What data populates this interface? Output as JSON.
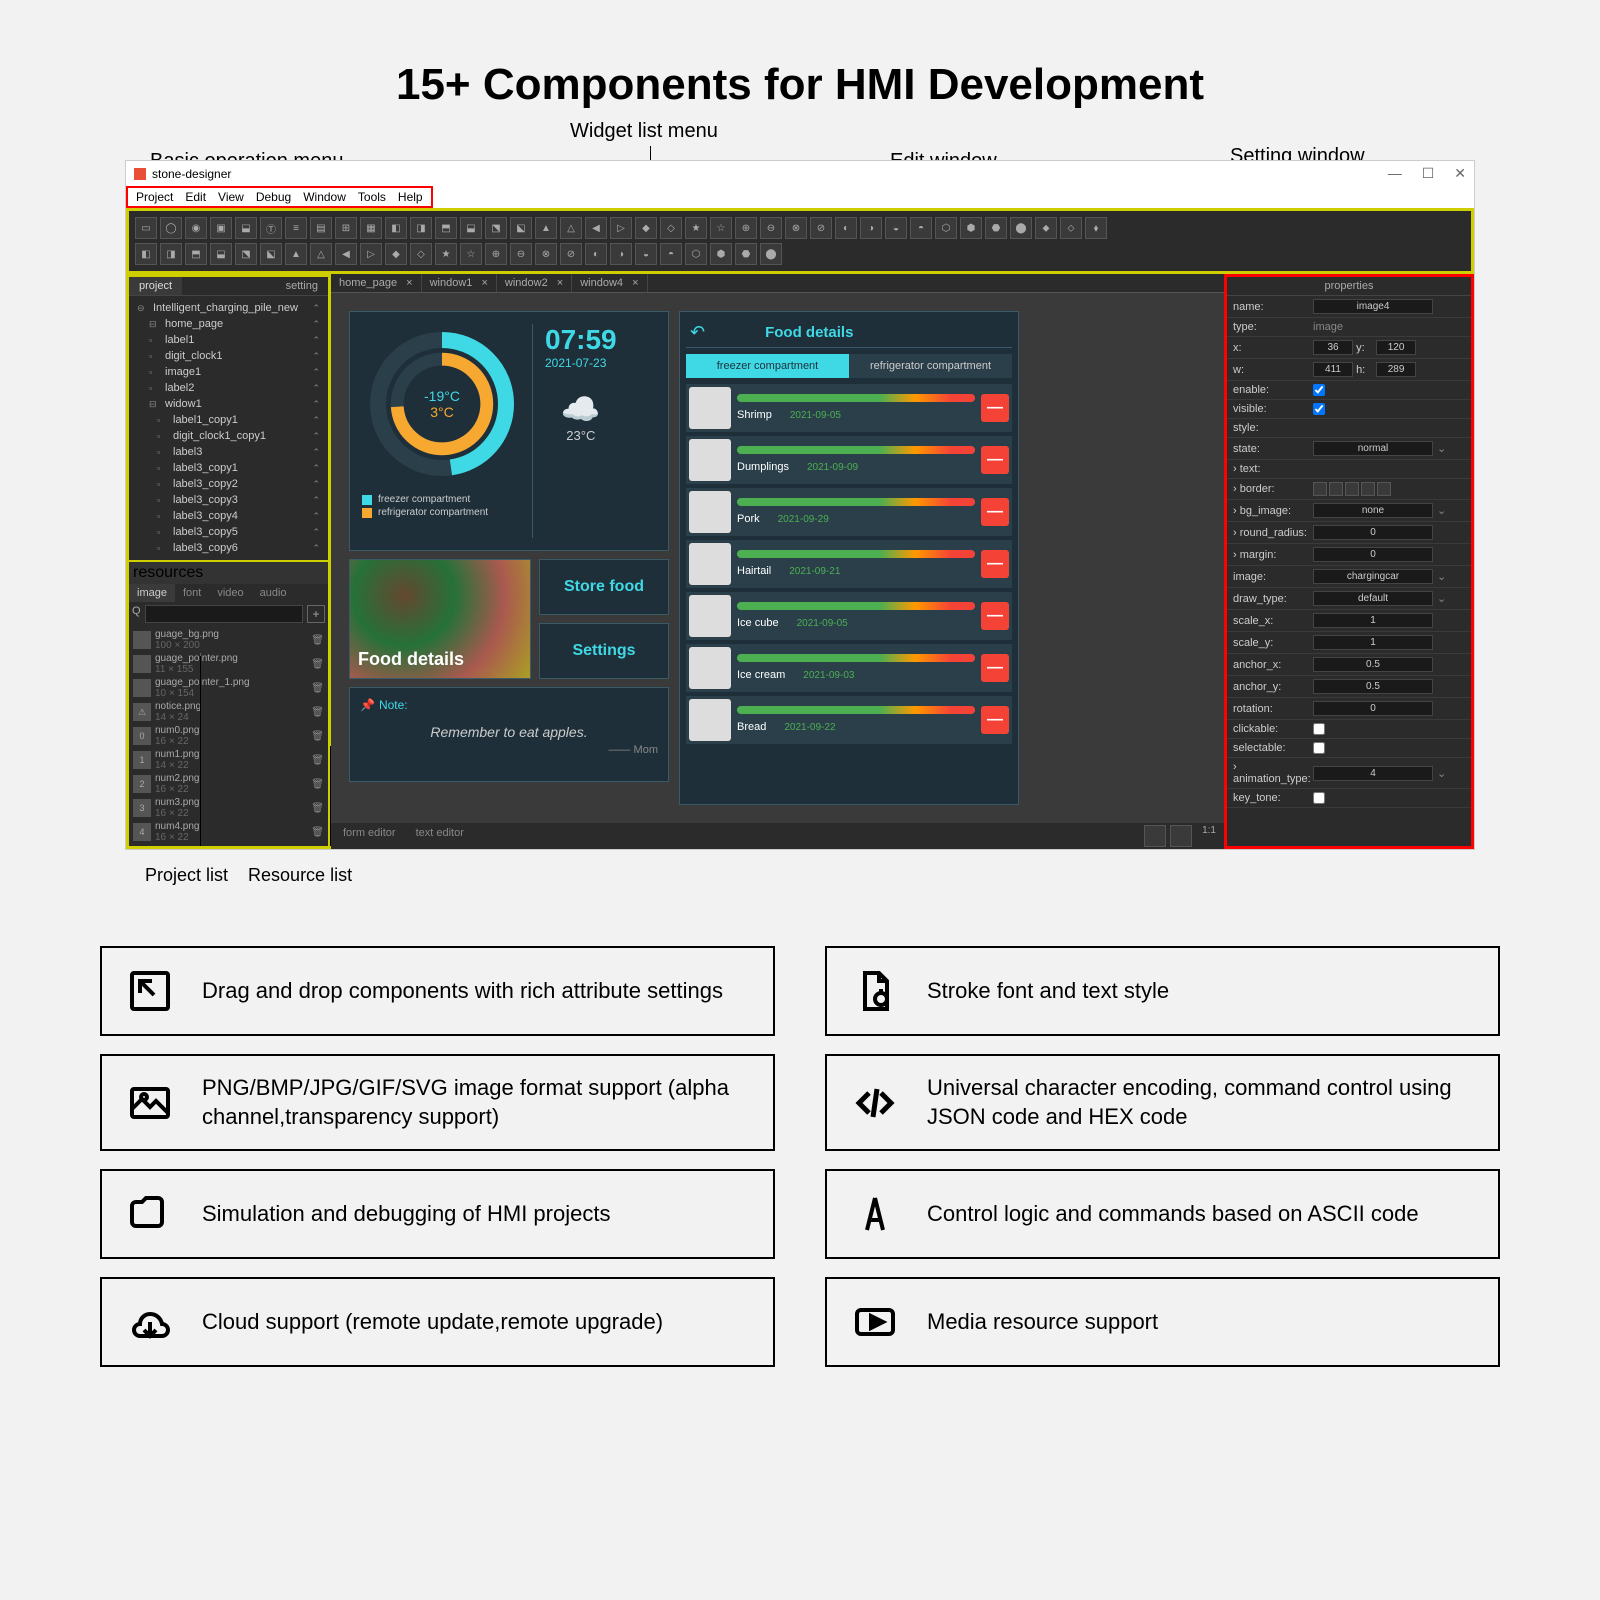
{
  "title": "15+ Components for HMI Development",
  "callouts": {
    "basic_menu": "Basic operation menu",
    "widget_menu": "Widget list menu",
    "edit_window": "Edit window",
    "setting_window": "Setting window",
    "project_list": "Project list",
    "resource_list": "Resource list"
  },
  "app": {
    "title": "stone-designer",
    "menu": [
      "Project",
      "Edit",
      "View",
      "Debug",
      "Window",
      "Tools",
      "Help"
    ]
  },
  "project_panel": {
    "tabs": [
      "project",
      "setting"
    ],
    "root": "Intelligent_charging_pile_new",
    "items": [
      "home_page",
      "label1",
      "digit_clock1",
      "image1",
      "label2",
      "widow1",
      "label1_copy1",
      "digit_clock1_copy1",
      "label3",
      "label3_copy1",
      "label3_copy2",
      "label3_copy3",
      "label3_copy4",
      "label3_copy5",
      "label3_copy6"
    ],
    "res_header": "resources"
  },
  "resource_panel": {
    "tabs": [
      "image",
      "font",
      "video",
      "audio"
    ],
    "items": [
      {
        "name": "guage_bg.png",
        "dim": "100 × 200"
      },
      {
        "name": "guage_pointer.png",
        "dim": "11 × 155"
      },
      {
        "name": "guage_pointer_1.png",
        "dim": "10 × 154"
      },
      {
        "name": "notice.png",
        "dim": "14 × 24"
      },
      {
        "name": "num0.png",
        "dim": "16 × 22"
      },
      {
        "name": "num1.png",
        "dim": "14 × 22"
      },
      {
        "name": "num2.png",
        "dim": "16 × 22"
      },
      {
        "name": "num3.png",
        "dim": "16 × 22"
      },
      {
        "name": "num4.png",
        "dim": "16 × 22"
      }
    ]
  },
  "doc_tabs": [
    "home_page",
    "window1",
    "window2",
    "window4"
  ],
  "dashboard": {
    "temp1": "-19°C",
    "temp2": "3°C",
    "time": "07:59",
    "date": "2021-07-23",
    "weather_temp": "23°C",
    "legend1": "freezer compartment",
    "legend2": "refrigerator compartment",
    "color1": "#3fd9e6",
    "color2": "#f7a830",
    "food_details_btn": "Food details",
    "store_food_btn": "Store food",
    "settings_btn": "Settings",
    "note_label": "Note:",
    "note_text": "Remember to eat apples.",
    "note_sig": "—— Mom"
  },
  "food_panel": {
    "title": "Food details",
    "tabs": [
      "freezer compartment",
      "refrigerator compartment"
    ],
    "items": [
      {
        "name": "Shrimp",
        "date": "2021-09-05"
      },
      {
        "name": "Dumplings",
        "date": "2021-09-09"
      },
      {
        "name": "Pork",
        "date": "2021-09-29"
      },
      {
        "name": "Hairtail",
        "date": "2021-09-21"
      },
      {
        "name": "Ice cube",
        "date": "2021-09-05"
      },
      {
        "name": "Ice cream",
        "date": "2021-09-03"
      },
      {
        "name": "Bread",
        "date": "2021-09-22"
      }
    ]
  },
  "bottom_tabs": [
    "form editor",
    "text editor"
  ],
  "properties": {
    "header": "properties",
    "rows": [
      {
        "k": "name:",
        "v": "image4",
        "t": "input"
      },
      {
        "k": "type:",
        "v": "image",
        "t": "text"
      },
      {
        "k": "x:",
        "v": "36",
        "k2": "y:",
        "v2": "120",
        "t": "xy"
      },
      {
        "k": "w:",
        "v": "411",
        "k2": "h:",
        "v2": "289",
        "t": "xy"
      },
      {
        "k": "enable:",
        "v": true,
        "t": "check"
      },
      {
        "k": "visible:",
        "v": true,
        "t": "check"
      },
      {
        "k": "style:",
        "v": "",
        "t": "text"
      },
      {
        "k": "state:",
        "v": "normal",
        "t": "select"
      },
      {
        "k": "› text:",
        "v": "",
        "t": "text"
      },
      {
        "k": "› border:",
        "v": "",
        "t": "borders"
      },
      {
        "k": "› bg_image:",
        "v": "none",
        "t": "select"
      },
      {
        "k": "› round_radius:",
        "v": "0",
        "t": "input"
      },
      {
        "k": "› margin:",
        "v": "0",
        "t": "input"
      },
      {
        "k": "image:",
        "v": "chargingcar",
        "t": "select"
      },
      {
        "k": "draw_type:",
        "v": "default",
        "t": "select"
      },
      {
        "k": "scale_x:",
        "v": "1",
        "t": "input"
      },
      {
        "k": "scale_y:",
        "v": "1",
        "t": "input"
      },
      {
        "k": "anchor_x:",
        "v": "0.5",
        "t": "input"
      },
      {
        "k": "anchor_y:",
        "v": "0.5",
        "t": "input"
      },
      {
        "k": "rotation:",
        "v": "0",
        "t": "input"
      },
      {
        "k": "clickable:",
        "v": false,
        "t": "check"
      },
      {
        "k": "selectable:",
        "v": false,
        "t": "check"
      },
      {
        "k": "› animation_type:",
        "v": "4",
        "t": "select"
      },
      {
        "k": "key_tone:",
        "v": false,
        "t": "check"
      }
    ]
  },
  "features": {
    "left": [
      "Drag and drop components with rich attribute settings",
      "PNG/BMP/JPG/GIF/SVG image format support (alpha channel,transparency support)",
      "Simulation and debugging of HMI projects",
      "Cloud support (remote update,remote upgrade)"
    ],
    "right": [
      "Stroke font and text style",
      "Universal character encoding, command control using JSON code and HEX code",
      "Control logic and commands based on ASCII code",
      "Media resource support"
    ]
  }
}
